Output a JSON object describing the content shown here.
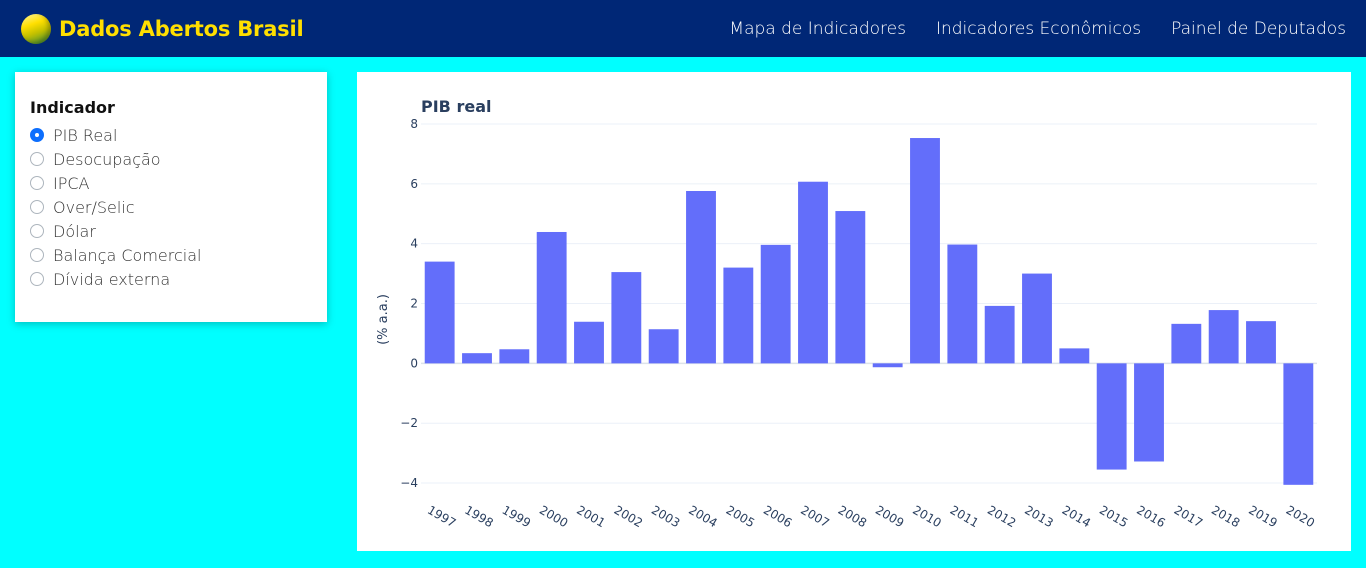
{
  "header": {
    "brand": "Dados Abertos Brasil",
    "nav": [
      "Mapa de Indicadores",
      "Indicadores Econômicos",
      "Painel de Deputados"
    ]
  },
  "sidebar": {
    "title": "Indicador",
    "options": [
      {
        "label": "PIB Real",
        "checked": true
      },
      {
        "label": "Desocupação",
        "checked": false
      },
      {
        "label": "IPCA",
        "checked": false
      },
      {
        "label": "Over/Selic",
        "checked": false
      },
      {
        "label": "Dólar",
        "checked": false
      },
      {
        "label": "Balança Comercial",
        "checked": false
      },
      {
        "label": "Dívida externa",
        "checked": false
      }
    ]
  },
  "colors": {
    "navbar": "#002776",
    "brand": "#ffdf00",
    "page_background": "#00ffff",
    "bar": "#636efa"
  },
  "chart_data": {
    "type": "bar",
    "title": "PIB real",
    "xlabel": "",
    "ylabel": "(% a.a.)",
    "categories": [
      "1997",
      "1998",
      "1999",
      "2000",
      "2001",
      "2002",
      "2003",
      "2004",
      "2005",
      "2006",
      "2007",
      "2008",
      "2009",
      "2010",
      "2011",
      "2012",
      "2013",
      "2014",
      "2015",
      "2016",
      "2017",
      "2018",
      "2019",
      "2020"
    ],
    "values": [
      3.4,
      0.34,
      0.47,
      4.39,
      1.39,
      3.05,
      1.14,
      5.76,
      3.2,
      3.96,
      6.07,
      5.09,
      -0.13,
      7.53,
      3.97,
      1.92,
      3.0,
      0.5,
      -3.55,
      -3.28,
      1.32,
      1.78,
      1.41,
      -4.06
    ],
    "yticks": [
      8,
      6,
      4,
      2,
      0,
      -2,
      -4
    ],
    "ylim": [
      -4.4,
      8.4
    ],
    "grid": true
  }
}
